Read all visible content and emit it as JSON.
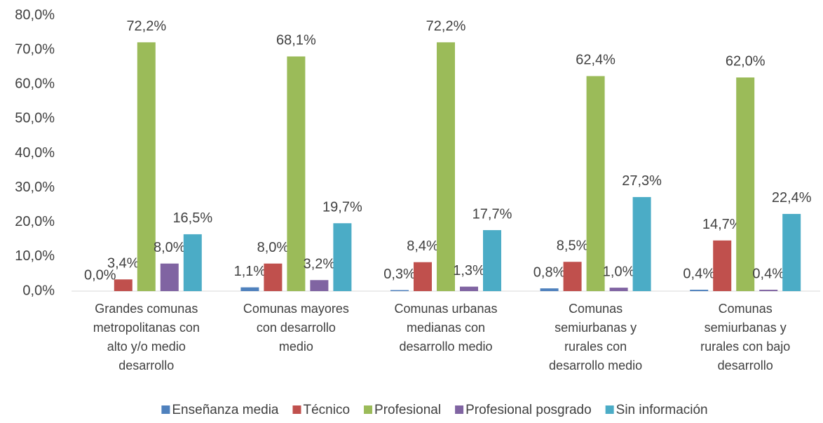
{
  "chart_data": {
    "type": "bar",
    "categories": [
      "Grandes comunas metropolitanas con alto y/o medio desarrollo",
      "Comunas mayores con desarrollo medio",
      "Comunas urbanas medianas con desarrollo medio",
      "Comunas semiurbanas y rurales con desarrollo medio",
      "Comunas semiurbanas y rurales con bajo desarrollo"
    ],
    "series": [
      {
        "name": "Enseñanza media",
        "color": "#4f81bd",
        "values": [
          0.0,
          1.1,
          0.3,
          0.8,
          0.4
        ],
        "value_labels": [
          "0,0%",
          "1,1%",
          "0,3%",
          "0,8%",
          "0,4%"
        ]
      },
      {
        "name": "Técnico",
        "color": "#c0504d",
        "values": [
          3.4,
          8.0,
          8.4,
          8.5,
          14.7
        ],
        "value_labels": [
          "3,4%",
          "8,0%",
          "8,4%",
          "8,5%",
          "14,7%"
        ]
      },
      {
        "name": "Profesional",
        "color": "#9bbb59",
        "values": [
          72.2,
          68.1,
          72.2,
          62.4,
          62.0
        ],
        "value_labels": [
          "72,2%",
          "68,1%",
          "72,2%",
          "62,4%",
          "62,0%"
        ]
      },
      {
        "name": "Profesional posgrado",
        "color": "#8064a2",
        "values": [
          8.0,
          3.2,
          1.3,
          1.0,
          0.4
        ],
        "value_labels": [
          "8,0%",
          "3,2%",
          "1,3%",
          "1,0%",
          "0,4%"
        ]
      },
      {
        "name": "Sin información",
        "color": "#4bacc6",
        "values": [
          16.5,
          19.7,
          17.7,
          27.3,
          22.4
        ],
        "value_labels": [
          "16,5%",
          "19,7%",
          "17,7%",
          "27,3%",
          "22,4%"
        ]
      }
    ],
    "ylim": [
      0,
      80
    ],
    "yticks": [
      {
        "value": 0,
        "label": "0,0%"
      },
      {
        "value": 10,
        "label": "10,0%"
      },
      {
        "value": 20,
        "label": "20,0%"
      },
      {
        "value": 30,
        "label": "30,0%"
      },
      {
        "value": 40,
        "label": "40,0%"
      },
      {
        "value": 50,
        "label": "50,0%"
      },
      {
        "value": 60,
        "label": "60,0%"
      },
      {
        "value": 70,
        "label": "70,0%"
      },
      {
        "value": 80,
        "label": "80,0%"
      }
    ],
    "grid": false
  }
}
